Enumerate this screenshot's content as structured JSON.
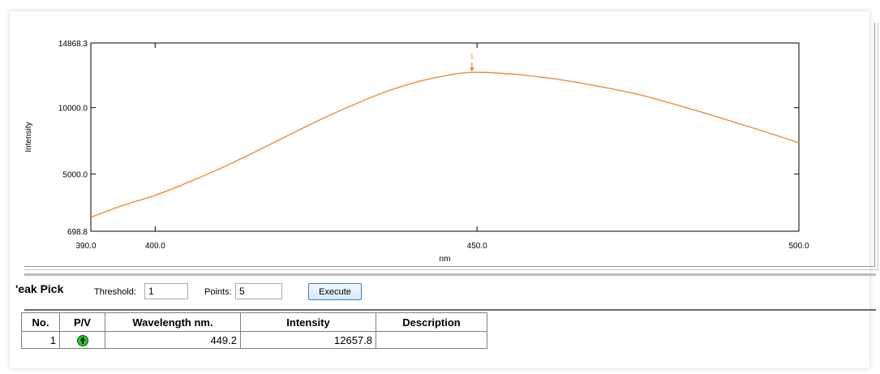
{
  "chart_data": {
    "type": "line",
    "xlabel": "nm",
    "ylabel": "Intensity",
    "xlim": [
      390.0,
      500.0
    ],
    "ylim": [
      698.8,
      14868.3
    ],
    "x_ticks": [
      "390.0",
      "400.0",
      "450.0",
      "500.0"
    ],
    "y_ticks": [
      "14868.3",
      "10000.0",
      "5000.0",
      "698.8"
    ],
    "grid": false,
    "series": [
      {
        "x": [
          390,
          395,
          400,
          405,
          410,
          415,
          420,
          425,
          430,
          435,
          440,
          445,
          449.2,
          455,
          460,
          465,
          470,
          475,
          480,
          485,
          490,
          495,
          500
        ],
        "y": [
          1750,
          2650,
          3400,
          4350,
          5400,
          6550,
          7750,
          8950,
          10050,
          11050,
          11850,
          12400,
          12657.8,
          12550,
          12300,
          11950,
          11500,
          11000,
          10350,
          9650,
          8900,
          8150,
          7350
        ],
        "color": "#f08a3c"
      }
    ],
    "annotations": [
      {
        "type": "peak-marker",
        "x": 449.2,
        "y": 12657.8,
        "label": "1"
      }
    ]
  },
  "peak_pick": {
    "title": "'eak Pick",
    "threshold_label": "Threshold:",
    "threshold_value": "1",
    "points_label": "Points:",
    "points_value": "5",
    "execute_label": "Execute"
  },
  "table": {
    "headers": [
      "No.",
      "P/V",
      "Wavelength nm.",
      "Intensity",
      "Description"
    ],
    "rows": [
      {
        "no": "1",
        "pv": "peak-up-icon",
        "wavelength": "449.2",
        "intensity": "12657.8",
        "description": ""
      }
    ]
  },
  "colors": {
    "curve": "#f08a3c",
    "peak_icon": "#22cc22"
  }
}
